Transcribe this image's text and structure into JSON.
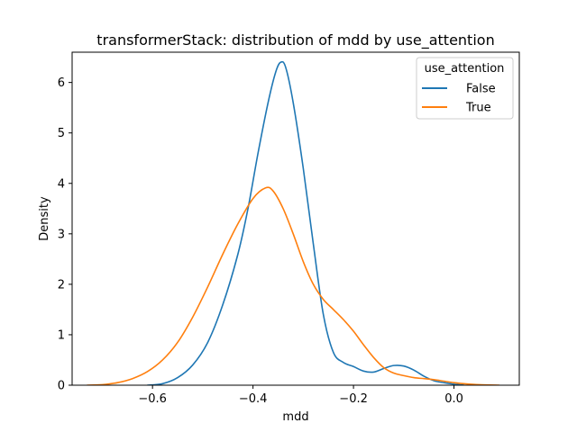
{
  "chart_data": {
    "type": "line",
    "title": "transformerStack: distribution of mdd by use_attention",
    "xlabel": "mdd",
    "ylabel": "Density",
    "xlim": [
      -0.76,
      0.13
    ],
    "ylim": [
      0,
      6.6
    ],
    "xticks": [
      {
        "value": -0.6,
        "label": "−0.6"
      },
      {
        "value": -0.4,
        "label": "−0.4"
      },
      {
        "value": -0.2,
        "label": "−0.2"
      },
      {
        "value": 0.0,
        "label": "0.0"
      }
    ],
    "yticks": [
      {
        "value": 0,
        "label": "0"
      },
      {
        "value": 1,
        "label": "1"
      },
      {
        "value": 2,
        "label": "2"
      },
      {
        "value": 3,
        "label": "3"
      },
      {
        "value": 4,
        "label": "4"
      },
      {
        "value": 5,
        "label": "5"
      },
      {
        "value": 6,
        "label": "6"
      }
    ],
    "grid": false,
    "legend": {
      "title": "use_attention",
      "placement": "top-right"
    },
    "series": [
      {
        "name": "False",
        "color": "#1f77b4",
        "points": [
          [
            -0.61,
            0.0
          ],
          [
            -0.58,
            0.03
          ],
          [
            -0.55,
            0.15
          ],
          [
            -0.52,
            0.4
          ],
          [
            -0.49,
            0.85
          ],
          [
            -0.46,
            1.6
          ],
          [
            -0.43,
            2.6
          ],
          [
            -0.41,
            3.5
          ],
          [
            -0.39,
            4.6
          ],
          [
            -0.37,
            5.6
          ],
          [
            -0.355,
            6.2
          ],
          [
            -0.345,
            6.4
          ],
          [
            -0.335,
            6.3
          ],
          [
            -0.32,
            5.6
          ],
          [
            -0.3,
            4.3
          ],
          [
            -0.28,
            2.8
          ],
          [
            -0.26,
            1.4
          ],
          [
            -0.24,
            0.65
          ],
          [
            -0.22,
            0.45
          ],
          [
            -0.2,
            0.37
          ],
          [
            -0.18,
            0.28
          ],
          [
            -0.16,
            0.26
          ],
          [
            -0.14,
            0.33
          ],
          [
            -0.12,
            0.39
          ],
          [
            -0.1,
            0.38
          ],
          [
            -0.08,
            0.3
          ],
          [
            -0.06,
            0.18
          ],
          [
            -0.04,
            0.09
          ],
          [
            -0.02,
            0.05
          ],
          [
            0.0,
            0.02
          ],
          [
            0.02,
            0.0
          ]
        ]
      },
      {
        "name": "True",
        "color": "#ff7f0e",
        "points": [
          [
            -0.73,
            0.0
          ],
          [
            -0.7,
            0.01
          ],
          [
            -0.67,
            0.05
          ],
          [
            -0.64,
            0.13
          ],
          [
            -0.61,
            0.27
          ],
          [
            -0.58,
            0.5
          ],
          [
            -0.55,
            0.85
          ],
          [
            -0.52,
            1.35
          ],
          [
            -0.49,
            1.95
          ],
          [
            -0.46,
            2.6
          ],
          [
            -0.43,
            3.2
          ],
          [
            -0.4,
            3.7
          ],
          [
            -0.375,
            3.91
          ],
          [
            -0.36,
            3.85
          ],
          [
            -0.34,
            3.5
          ],
          [
            -0.32,
            3.0
          ],
          [
            -0.3,
            2.45
          ],
          [
            -0.28,
            2.0
          ],
          [
            -0.26,
            1.7
          ],
          [
            -0.24,
            1.5
          ],
          [
            -0.22,
            1.3
          ],
          [
            -0.2,
            1.07
          ],
          [
            -0.18,
            0.8
          ],
          [
            -0.16,
            0.55
          ],
          [
            -0.14,
            0.35
          ],
          [
            -0.12,
            0.24
          ],
          [
            -0.1,
            0.19
          ],
          [
            -0.08,
            0.15
          ],
          [
            -0.06,
            0.13
          ],
          [
            -0.04,
            0.11
          ],
          [
            -0.02,
            0.08
          ],
          [
            0.0,
            0.05
          ],
          [
            0.02,
            0.03
          ],
          [
            0.05,
            0.01
          ],
          [
            0.09,
            0.0
          ]
        ]
      }
    ]
  }
}
